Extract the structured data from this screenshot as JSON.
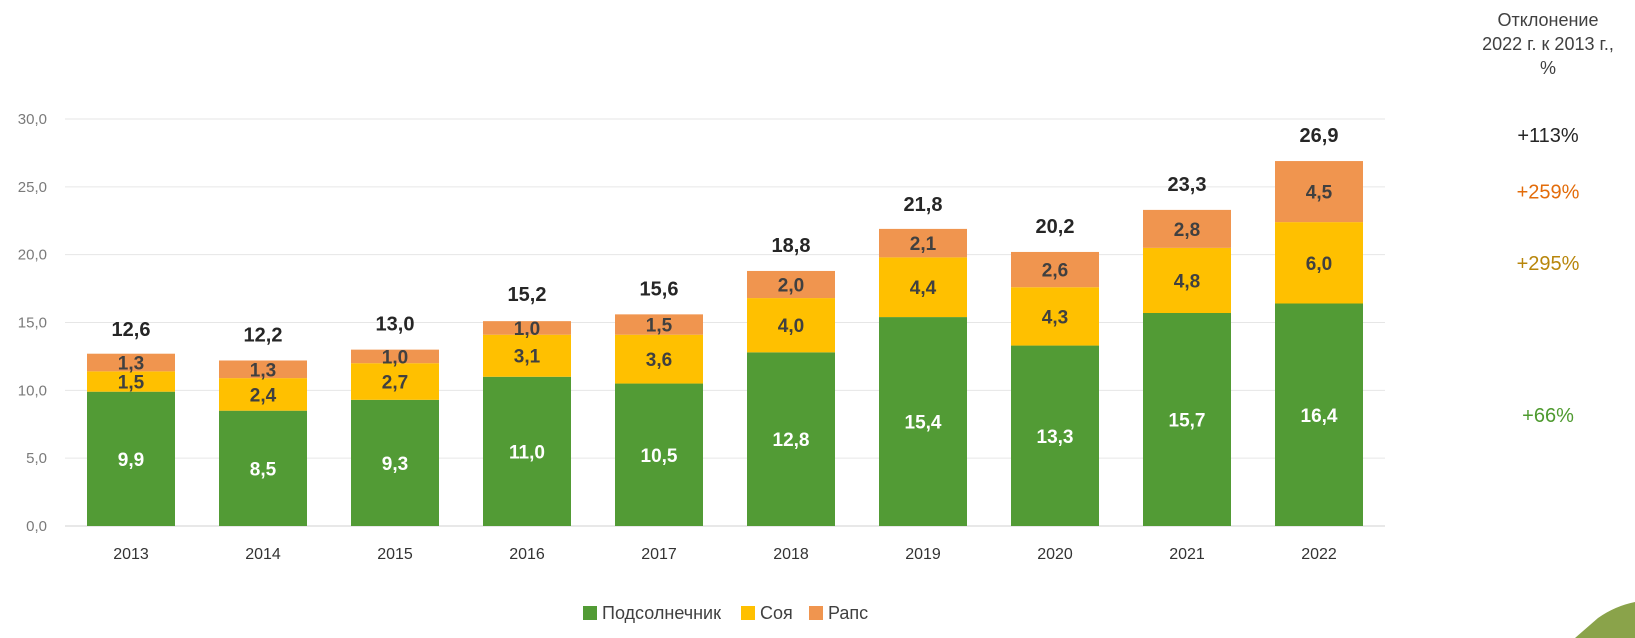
{
  "chart_data": {
    "type": "bar",
    "stacked": true,
    "categories": [
      "2013",
      "2014",
      "2015",
      "2016",
      "2017",
      "2018",
      "2019",
      "2020",
      "2021",
      "2022"
    ],
    "series": [
      {
        "name": "Подсолнечник",
        "color": "#529b35",
        "label_color": "#ffffff",
        "values": [
          9.9,
          8.5,
          9.3,
          11.0,
          10.5,
          12.8,
          15.4,
          13.3,
          15.7,
          16.4
        ],
        "labels": [
          "9,9",
          "8,5",
          "9,3",
          "11,0",
          "10,5",
          "12,8",
          "15,4",
          "13,3",
          "15,7",
          "16,4"
        ]
      },
      {
        "name": "Соя",
        "color": "#ffc000",
        "label_color": "#404040",
        "values": [
          1.5,
          2.4,
          2.7,
          3.1,
          3.6,
          4.0,
          4.4,
          4.3,
          4.8,
          6.0
        ],
        "labels": [
          "1,5",
          "2,4",
          "2,7",
          "3,1",
          "3,6",
          "4,0",
          "4,4",
          "4,3",
          "4,8",
          "6,0"
        ]
      },
      {
        "name": "Рапс",
        "color": "#f0954f",
        "label_color": "#404040",
        "values": [
          1.3,
          1.3,
          1.0,
          1.0,
          1.5,
          2.0,
          2.1,
          2.6,
          2.8,
          4.5
        ],
        "labels": [
          "1,3",
          "1,3",
          "1,0",
          "1,0",
          "1,5",
          "2,0",
          "2,1",
          "2,6",
          "2,8",
          "4,5"
        ]
      }
    ],
    "totals": [
      12.6,
      12.2,
      13.0,
      15.2,
      15.6,
      18.8,
      21.8,
      20.2,
      23.3,
      26.9
    ],
    "total_labels": [
      "12,6",
      "12,2",
      "13,0",
      "15,2",
      "15,6",
      "18,8",
      "21,8",
      "20,2",
      "23,3",
      "26,9"
    ],
    "ylim": [
      0,
      30
    ],
    "y_ticks": [
      0,
      5,
      10,
      15,
      20,
      25,
      30
    ],
    "y_tick_labels": [
      "0,0",
      "5,0",
      "10,0",
      "15,0",
      "20,0",
      "25,0",
      "30,0"
    ],
    "grid": true,
    "legend_position": "bottom",
    "title": "",
    "xlabel": "",
    "ylabel": ""
  },
  "deviation": {
    "title_lines": [
      "Отклонение",
      "2022 г. к 2013 г.,",
      "%"
    ],
    "items": [
      {
        "label": "+113%",
        "color": "#262626",
        "anchor": "total"
      },
      {
        "label": "+259%",
        "color": "#e36c0a",
        "anchor": "Рапс"
      },
      {
        "label": "+295%",
        "color": "#b8860b",
        "anchor": "Соя"
      },
      {
        "label": "+66%",
        "color": "#4e9a2f",
        "anchor": "Подсолнечник"
      }
    ]
  }
}
